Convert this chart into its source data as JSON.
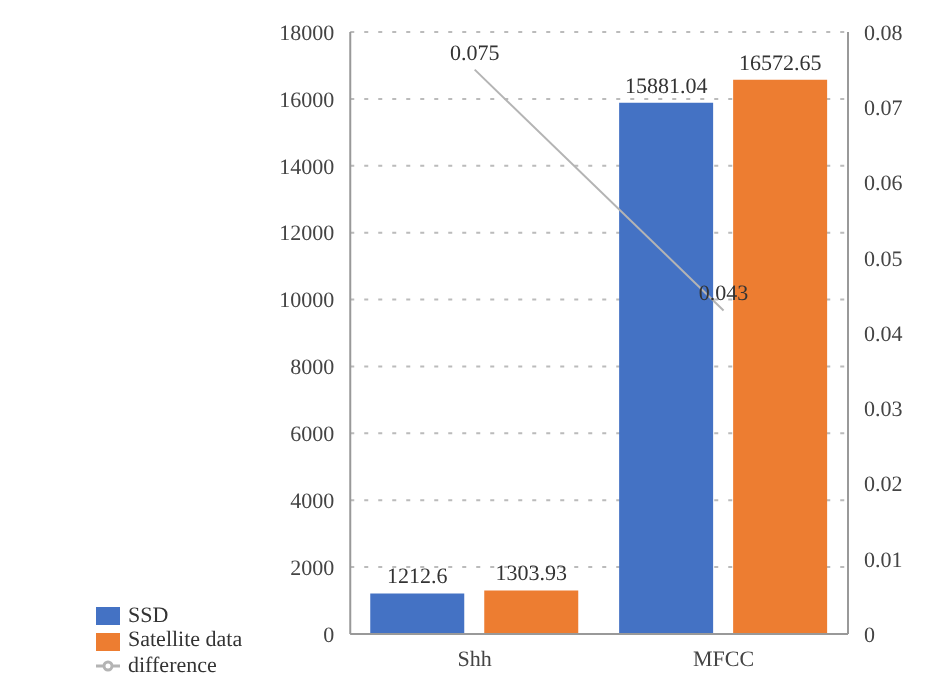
{
  "chart_data": {
    "type": "bar",
    "categories": [
      "Shh",
      "MFCC"
    ],
    "series": [
      {
        "name": "SSD",
        "color": "#4472c4",
        "values": [
          1212.6,
          15881.04
        ]
      },
      {
        "name": "Satellite data",
        "color": "#ed7d31",
        "values": [
          1303.93,
          16572.65
        ]
      },
      {
        "name": "difference",
        "type": "line",
        "axis": "y2",
        "color": "#b4b4b4",
        "values": [
          0.075,
          0.043
        ]
      }
    ],
    "ylim": [
      0,
      18000
    ],
    "yticks": [
      0,
      2000,
      4000,
      6000,
      8000,
      10000,
      12000,
      14000,
      16000,
      18000
    ],
    "y2lim": [
      0,
      0.08
    ],
    "y2ticks": [
      0,
      0.01,
      0.02,
      0.03,
      0.04,
      0.05,
      0.06,
      0.07,
      0.08
    ],
    "data_labels": true,
    "grid": "y",
    "legend": "bottom left",
    "marker": "none"
  }
}
